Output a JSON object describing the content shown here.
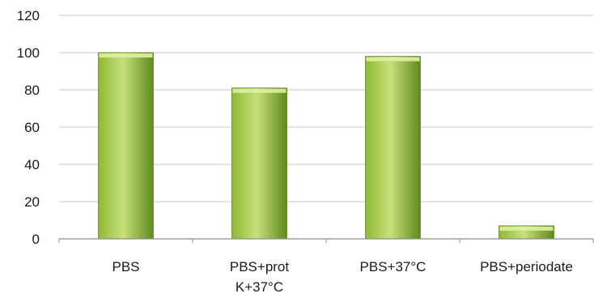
{
  "chart_data": {
    "type": "bar",
    "categories": [
      [
        "PBS"
      ],
      [
        "PBS+prot",
        "K+37°C"
      ],
      [
        "PBS+37°C"
      ],
      [
        "PBS+periodate"
      ]
    ],
    "values": [
      100,
      81,
      98,
      7
    ],
    "ylim": [
      0,
      120
    ],
    "y_ticks": [
      "0",
      "20",
      "40",
      "60",
      "80",
      "100",
      "120"
    ],
    "grid": true,
    "legend": "none",
    "colors": {
      "bar_light": "#c8e07a",
      "bar_mid": "#8fb935",
      "bar_dark": "#5f8a1e",
      "bar_top": "#dff0a0",
      "grid": "#c8c8c8",
      "axis": "#8c8c8c"
    }
  }
}
